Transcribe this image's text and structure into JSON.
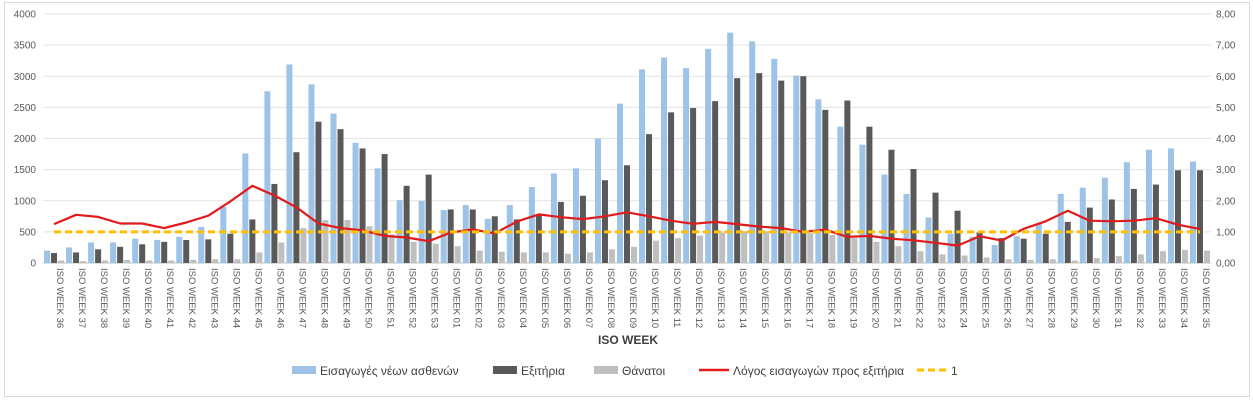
{
  "chart_data": {
    "type": "bar",
    "xlabel": "ISO WEEK",
    "categories": [
      "ISO WEEK 36",
      "ISO WEEK 37",
      "ISO WEEK 38",
      "ISO WEEK 39",
      "ISO WEEK 40",
      "ISO WEEK 41",
      "ISO WEEK 42",
      "ISO WEEK 43",
      "ISO WEEK 44",
      "ISO WEEK 45",
      "ISO WEEK 46",
      "ISO WEEK 47",
      "ISO WEEK 48",
      "ISO WEEK 49",
      "ISO WEEK 50",
      "ISO WEEK 51",
      "ISO WEEK 52",
      "ISO WEEK 53",
      "ISO WEEK 01",
      "ISO WEEK 02",
      "ISO WEEK 03",
      "ISO WEEK 04",
      "ISO WEEK 05",
      "ISO WEEK 06",
      "ISO WEEK 07",
      "ISO WEEK 08",
      "ISO WEEK 09",
      "ISO WEEK 10",
      "ISO WEEK 11",
      "ISO WEEK 12",
      "ISO WEEK 13",
      "ISO WEEK 14",
      "ISO WEEK 15",
      "ISO WEEK 16",
      "ISO WEEK 17",
      "ISO WEEK 18",
      "ISO WEEK 19",
      "ISO WEEK 20",
      "ISO WEEK 21",
      "ISO WEEK 22",
      "ISO WEEK 23",
      "ISO WEEK 24",
      "ISO WEEK 25",
      "ISO WEEK 26",
      "ISO WEEK 27",
      "ISO WEEK 28",
      "ISO WEEK 29",
      "ISO WEEK 30",
      "ISO WEEK 31",
      "ISO WEEK 32",
      "ISO WEEK 33",
      "ISO WEEK 34",
      "ISO WEEK 35"
    ],
    "y_left": {
      "ylim": [
        0,
        4000
      ],
      "ticks": [
        "0",
        "500",
        "1000",
        "1500",
        "2000",
        "2500",
        "3000",
        "3500",
        "4000"
      ]
    },
    "y_right": {
      "ylim": [
        0,
        8
      ],
      "ticks": [
        "0,00",
        "1,00",
        "2,00",
        "3,00",
        "4,00",
        "5,00",
        "6,00",
        "7,00",
        "8,00"
      ]
    },
    "series": [
      {
        "name": "Εισαγωγές νέων ασθενών",
        "type": "bar",
        "axis": "left",
        "color": "#9dc3e6",
        "values": [
          200,
          250,
          330,
          330,
          390,
          370,
          420,
          580,
          900,
          1760,
          2760,
          3190,
          2870,
          2400,
          1930,
          1520,
          1010,
          1000,
          850,
          930,
          710,
          930,
          1220,
          1440,
          1520,
          2000,
          2560,
          3110,
          3300,
          3130,
          3440,
          3700,
          3560,
          3280,
          3010,
          2630,
          2190,
          1900,
          1420,
          1110,
          730,
          470,
          420,
          290,
          430,
          630,
          1110,
          1210,
          1370,
          1620,
          1820,
          1840,
          1630
        ]
      },
      {
        "name": "Εξιτήρια",
        "type": "bar",
        "axis": "left",
        "color": "#595959",
        "values": [
          160,
          170,
          220,
          260,
          300,
          340,
          370,
          380,
          470,
          700,
          1270,
          1780,
          2270,
          2150,
          1840,
          1750,
          1240,
          1420,
          860,
          860,
          750,
          700,
          780,
          980,
          1080,
          1330,
          1570,
          2070,
          2420,
          2490,
          2600,
          2970,
          3050,
          2930,
          3000,
          2460,
          2610,
          2190,
          1820,
          1510,
          1130,
          840,
          490,
          400,
          390,
          470,
          660,
          890,
          1020,
          1190,
          1260,
          1490,
          1490
        ]
      },
      {
        "name": "Θάνατοι",
        "type": "bar",
        "axis": "left",
        "color": "#bfbfbf",
        "values": [
          40,
          30,
          40,
          50,
          40,
          40,
          50,
          60,
          60,
          170,
          330,
          560,
          690,
          690,
          590,
          460,
          340,
          310,
          270,
          200,
          180,
          170,
          170,
          150,
          170,
          220,
          260,
          360,
          400,
          440,
          490,
          510,
          510,
          490,
          480,
          450,
          400,
          340,
          270,
          190,
          140,
          120,
          90,
          60,
          50,
          60,
          40,
          80,
          110,
          140,
          190,
          210,
          200
        ]
      },
      {
        "name": "Λόγος εισαγωγών προς εξιτήρια",
        "type": "line",
        "axis": "right",
        "color": "#e31a1c",
        "values": [
          1.25,
          1.55,
          1.48,
          1.27,
          1.27,
          1.12,
          1.3,
          1.52,
          1.98,
          2.48,
          2.17,
          1.79,
          1.27,
          1.12,
          1.05,
          0.87,
          0.82,
          0.7,
          0.98,
          1.08,
          0.95,
          1.33,
          1.56,
          1.47,
          1.41,
          1.5,
          1.63,
          1.5,
          1.36,
          1.26,
          1.32,
          1.25,
          1.17,
          1.12,
          1.0,
          1.07,
          0.84,
          0.87,
          0.78,
          0.73,
          0.65,
          0.56,
          0.86,
          0.72,
          1.1,
          1.34,
          1.68,
          1.36,
          1.34,
          1.36,
          1.44,
          1.23,
          1.09
        ]
      },
      {
        "name": "1",
        "type": "line",
        "axis": "right",
        "color": "#ffc000",
        "dashed": true,
        "values": [
          1,
          1,
          1,
          1,
          1,
          1,
          1,
          1,
          1,
          1,
          1,
          1,
          1,
          1,
          1,
          1,
          1,
          1,
          1,
          1,
          1,
          1,
          1,
          1,
          1,
          1,
          1,
          1,
          1,
          1,
          1,
          1,
          1,
          1,
          1,
          1,
          1,
          1,
          1,
          1,
          1,
          1,
          1,
          1,
          1,
          1,
          1,
          1,
          1,
          1,
          1,
          1,
          1
        ]
      }
    ],
    "grid": true,
    "legend_position": "bottom"
  }
}
